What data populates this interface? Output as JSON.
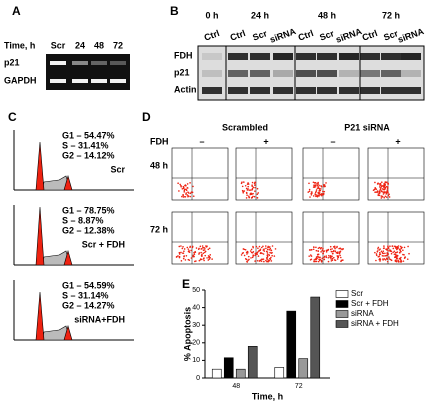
{
  "panels": {
    "A": {
      "letter": "A",
      "time_label": "Time, h",
      "lanes": [
        "Scr",
        "24",
        "48",
        "72"
      ],
      "rows": [
        "p21",
        "GAPDH"
      ]
    },
    "B": {
      "letter": "B",
      "times": [
        "0 h",
        "24 h",
        "48 h",
        "72 h"
      ],
      "lanes": [
        "Ctrl",
        "Ctrl",
        "Scr",
        "siRNA",
        "Ctrl",
        "Scr",
        "siRNA",
        "Ctrl",
        "Scr",
        "siRNA"
      ],
      "rows": [
        "FDH",
        "p21",
        "Actin"
      ]
    },
    "C": {
      "letter": "C",
      "histograms": [
        {
          "lines": [
            "G1 – 54.47%",
            "S – 31.41%",
            "G2 – 14.12%"
          ],
          "label": "Scr"
        },
        {
          "lines": [
            "G1 – 78.75%",
            "S – 8.87%",
            "G2 – 12.38%"
          ],
          "label": "Scr + FDH"
        },
        {
          "lines": [
            "G1 – 54.59%",
            "S – 31.14%",
            "G2 – 14.27%"
          ],
          "label": "siRNA+FDH"
        }
      ]
    },
    "D": {
      "letter": "D",
      "groups": [
        "Scrambled",
        "P21 siRNA"
      ],
      "treatment": "FDH",
      "signs": [
        "–",
        "+",
        "–",
        "+"
      ],
      "times": [
        "48 h",
        "72 h"
      ]
    }
  },
  "chart_data": {
    "type": "bar",
    "letter": "E",
    "ylabel": "% Apoptosis",
    "xlabel": "Time, h",
    "categories": [
      "48",
      "72"
    ],
    "ylim": [
      0,
      50
    ],
    "yticks": [
      0,
      10,
      20,
      30,
      40,
      50
    ],
    "series": [
      {
        "name": "Scr",
        "color": "#ffffff",
        "values": [
          5,
          6
        ]
      },
      {
        "name": "Scr + FDH",
        "color": "#000000",
        "values": [
          11.5,
          38
        ]
      },
      {
        "name": "siRNA",
        "color": "#999999",
        "values": [
          5,
          11
        ]
      },
      {
        "name": "siRNA + FDH",
        "color": "#555555",
        "values": [
          18,
          46
        ]
      }
    ]
  }
}
